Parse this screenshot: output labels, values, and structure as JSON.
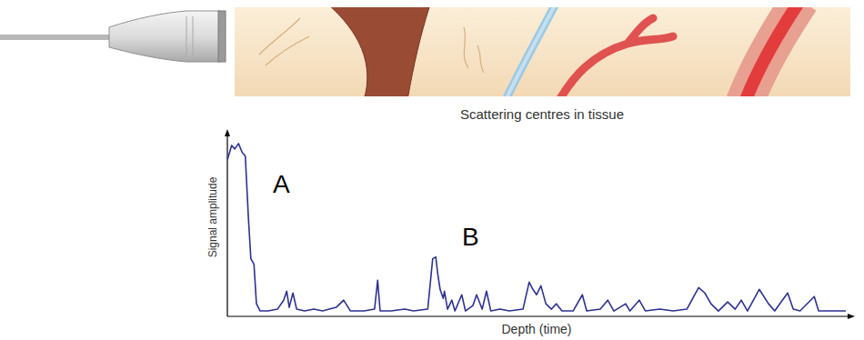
{
  "chart_data": {
    "type": "line",
    "xlabel": "Depth (time)",
    "ylabel": "Signal amplitude",
    "annotations": [
      "A",
      "B"
    ],
    "color": "#2e3192",
    "tick_labels": false,
    "xlim": [
      0,
      100
    ],
    "ylim": [
      0,
      100
    ],
    "x": [
      0,
      0.7,
      1.2,
      1.8,
      2.4,
      2.9,
      3.4,
      3.8,
      4.3,
      4.7,
      5.3,
      6.6,
      8.1,
      9.1,
      9.6,
      10.0,
      10.6,
      11.2,
      12.5,
      14.0,
      15.4,
      17.6,
      18.8,
      19.9,
      22.1,
      23.8,
      24.3,
      24.7,
      26.5,
      28.7,
      30.1,
      32.4,
      33.2,
      33.7,
      34.0,
      34.4,
      34.9,
      35.1,
      35.6,
      36.3,
      36.8,
      37.9,
      38.5,
      39.7,
      40.3,
      41.2,
      41.9,
      42.6,
      44.1,
      45.6,
      47.8,
      48.8,
      49.4,
      50.0,
      50.7,
      51.5,
      52.4,
      53.2,
      54.1,
      55.9,
      57.4,
      58.1,
      60.3,
      61.5,
      62.5,
      64.4,
      65.1,
      66.6,
      67.6,
      69.9,
      72.1,
      74.3,
      76.2,
      77.2,
      78.2,
      79.4,
      80.9,
      82.1,
      83.1,
      84.1,
      86.0,
      87.5,
      88.5,
      90.6,
      91.5,
      92.6,
      94.9,
      95.6,
      97.8,
      100
    ],
    "values": [
      87,
      95,
      93,
      96,
      91,
      89,
      55,
      32,
      29,
      7,
      3,
      3,
      4,
      9,
      14,
      5,
      13,
      4,
      3,
      4,
      3,
      5,
      9,
      3,
      3,
      4,
      20,
      3,
      3,
      4,
      3,
      4,
      32,
      33,
      24,
      15,
      10,
      14,
      4,
      9,
      3,
      12,
      3,
      6,
      12,
      4,
      14,
      3,
      4,
      3,
      4,
      19,
      15,
      12,
      17,
      7,
      4,
      7,
      3,
      3,
      12,
      3,
      4,
      9,
      3,
      7,
      3,
      9,
      3,
      4,
      3,
      4,
      16,
      13,
      7,
      3,
      8,
      4,
      9,
      3,
      15,
      7,
      3,
      13,
      4,
      3,
      11,
      3,
      3,
      3
    ]
  },
  "figure": {
    "caption": "Scattering centres in tissue"
  }
}
